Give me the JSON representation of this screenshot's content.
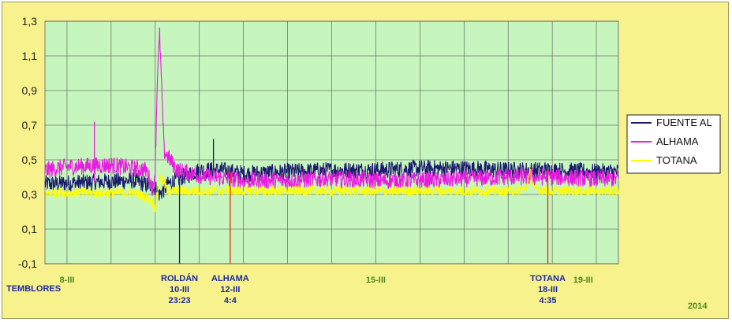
{
  "chart_data": {
    "type": "line",
    "xlabel": "",
    "ylabel": "",
    "ylim": [
      -0.1,
      1.3
    ],
    "yticks": [
      "1,3",
      "1,1",
      "0,9",
      "0,7",
      "0,5",
      "0,3",
      "0,1",
      "-0,1"
    ],
    "xlim": [
      7.5,
      20.5
    ],
    "grid": true,
    "legend_position": "right",
    "series": [
      {
        "name": "FUENTE AL",
        "color": "#1a1a6e",
        "base": 0.37,
        "noise": 0.05,
        "x": [
          7.5,
          8.5,
          9.5,
          10.0,
          10.1,
          10.3,
          10.6,
          11.0,
          11.5,
          12.0,
          13.0,
          14.0,
          15.0,
          16.0,
          17.0,
          18.0,
          19.0,
          20.0,
          20.5
        ],
        "values": [
          0.36,
          0.37,
          0.38,
          0.34,
          0.3,
          0.36,
          0.4,
          0.44,
          0.44,
          0.42,
          0.43,
          0.44,
          0.44,
          0.45,
          0.45,
          0.44,
          0.44,
          0.43,
          0.43
        ]
      },
      {
        "name": "ALHAMA",
        "color": "#e81ce0",
        "base": 0.46,
        "noise": 0.05,
        "x": [
          7.5,
          8.0,
          9.0,
          9.8,
          9.95,
          10.0,
          10.05,
          10.1,
          10.2,
          10.5,
          11.0,
          12.0,
          13.0,
          14.0,
          15.0,
          16.0,
          17.0,
          18.0,
          19.0,
          20.0,
          20.5
        ],
        "values": [
          0.44,
          0.46,
          0.47,
          0.44,
          0.33,
          0.45,
          1.0,
          1.22,
          0.55,
          0.44,
          0.41,
          0.38,
          0.38,
          0.39,
          0.38,
          0.38,
          0.39,
          0.4,
          0.4,
          0.39,
          0.39
        ]
      },
      {
        "name": "TOTANA",
        "color": "#ffff00",
        "base": 0.32,
        "noise": 0.03,
        "x": [
          7.5,
          8.5,
          9.5,
          9.9,
          10.0,
          10.1,
          10.3,
          11.0,
          12.0,
          13.0,
          14.0,
          15.0,
          16.0,
          17.0,
          18.0,
          18.4,
          18.5,
          18.6,
          19.0,
          20.0,
          20.5
        ],
        "values": [
          0.31,
          0.31,
          0.31,
          0.27,
          0.22,
          0.4,
          0.32,
          0.32,
          0.32,
          0.32,
          0.32,
          0.32,
          0.32,
          0.32,
          0.32,
          0.33,
          0.43,
          0.33,
          0.32,
          0.32,
          0.32
        ]
      }
    ],
    "spikes": [
      {
        "x": 10.55,
        "value": -0.1,
        "color": "#1a1a6e"
      },
      {
        "x": 11.7,
        "value": -0.1,
        "color": "#e0300c"
      },
      {
        "x": 18.9,
        "value": -0.1,
        "color": "#e0300c"
      },
      {
        "x": 8.62,
        "value": 0.72,
        "color": "#e81ce0"
      },
      {
        "x": 11.32,
        "value": 0.62,
        "color": "#1a1a6e"
      }
    ],
    "event_label_left": "TEMBLORES",
    "events": [
      {
        "x": 10.55,
        "lines": [
          "ROLDÁN",
          "10-III",
          "23:23"
        ]
      },
      {
        "x": 11.7,
        "lines": [
          "ALHAMA",
          "12-III",
          "4:4"
        ]
      },
      {
        "x": 18.9,
        "lines": [
          "TOTANA",
          "18-III",
          "4:35"
        ]
      }
    ],
    "date_labels": [
      {
        "x": 8.0,
        "label": "8-III"
      },
      {
        "x": 15.0,
        "label": "15-III"
      },
      {
        "x": 19.7,
        "label": "19-III"
      }
    ],
    "year": "2014"
  }
}
